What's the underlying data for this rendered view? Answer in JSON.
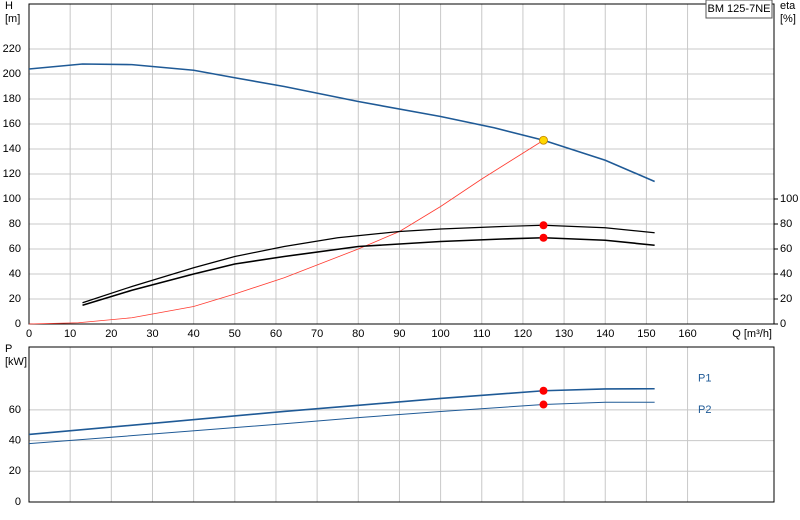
{
  "chart_data": [
    {
      "type": "line",
      "title": "BM 125-7NE",
      "ylabel": [
        "H",
        "[m]"
      ],
      "y2label": [
        "eta",
        "[%]"
      ],
      "xlabel": "Q [m³/h]",
      "xlim": [
        0,
        181
      ],
      "xticks": [
        0,
        10,
        20,
        30,
        40,
        50,
        60,
        70,
        80,
        90,
        100,
        110,
        120,
        130,
        140,
        150,
        160
      ],
      "ylim": [
        0,
        256
      ],
      "yticks": [
        0,
        20,
        40,
        60,
        80,
        100,
        120,
        140,
        160,
        180,
        200,
        220
      ],
      "y2lim": [
        0,
        256
      ],
      "y2ticks": [
        0,
        20,
        40,
        60,
        80,
        100
      ],
      "grid": true,
      "series": [
        {
          "color": "#1f5a96",
          "width": 1.6,
          "x": [
            0,
            13,
            25,
            40,
            50,
            62,
            80,
            100,
            113,
            125,
            140,
            152
          ],
          "values": [
            204,
            208,
            207.5,
            203,
            197,
            190,
            178,
            166,
            157,
            147,
            131,
            114
          ]
        },
        {
          "color": "#ff3b30",
          "width": 0.8,
          "x": [
            0,
            12,
            25,
            40,
            50,
            62,
            80,
            90,
            100,
            110,
            125
          ],
          "values": [
            0,
            1,
            5,
            14,
            24,
            37,
            60,
            74,
            94,
            116,
            147
          ]
        },
        {
          "color": "#000000",
          "width": 1.2,
          "axis": "y2",
          "x": [
            13,
            25,
            40,
            50,
            62,
            75,
            90,
            100,
            115,
            125,
            140,
            152
          ],
          "values": [
            17,
            30,
            45,
            54,
            62,
            69,
            74,
            76,
            78,
            79,
            77,
            73
          ]
        },
        {
          "color": "#000000",
          "width": 1.6,
          "axis": "y2",
          "x": [
            13,
            25,
            40,
            50,
            62,
            80,
            100,
            115,
            125,
            140,
            152
          ],
          "values": [
            15,
            27,
            40,
            48,
            54,
            62,
            66,
            68,
            69,
            67,
            63
          ]
        }
      ],
      "points": [
        {
          "x": 125,
          "y": 147,
          "color": "#ffd700"
        },
        {
          "x": 125,
          "y": 79,
          "color": "#ff0000",
          "axis": "y2"
        },
        {
          "x": 125,
          "y": 69,
          "color": "#ff0000",
          "axis": "y2"
        }
      ]
    },
    {
      "type": "line",
      "ylabel": [
        "P",
        "[kW]"
      ],
      "xlim": [
        0,
        181
      ],
      "xticks": [
        0,
        10,
        20,
        30,
        40,
        50,
        60,
        70,
        80,
        90,
        100,
        110,
        120,
        130,
        140,
        150,
        160
      ],
      "xtick_labels": false,
      "ylim": [
        0,
        101
      ],
      "yticks": [
        0,
        20,
        40,
        60
      ],
      "grid": true,
      "series": [
        {
          "name": "P1",
          "color": "#1f5a96",
          "width": 1.6,
          "x": [
            0,
            62,
            80,
            100,
            125,
            140,
            152
          ],
          "values": [
            44,
            59,
            63,
            67.5,
            72.5,
            73.7,
            73.8
          ]
        },
        {
          "name": "P2",
          "color": "#1f5a96",
          "width": 1,
          "x": [
            0,
            62,
            80,
            100,
            125,
            140,
            152
          ],
          "values": [
            38,
            51,
            55,
            59,
            63.5,
            65,
            65
          ]
        }
      ],
      "points": [
        {
          "x": 125,
          "y": 72.5,
          "color": "#ff0000"
        },
        {
          "x": 125,
          "y": 63.5,
          "color": "#ff0000"
        }
      ]
    }
  ]
}
